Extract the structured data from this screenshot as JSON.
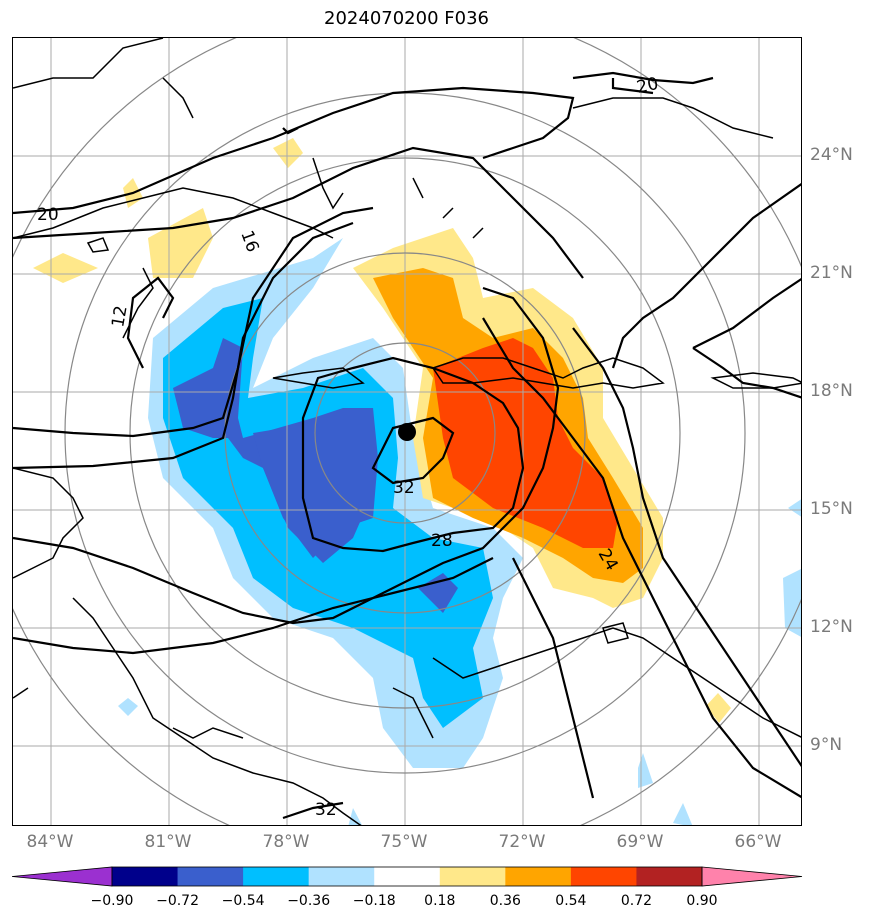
{
  "title": "2024070200 F036",
  "lon_labels": [
    "84°W",
    "81°W",
    "78°W",
    "75°W",
    "72°W",
    "69°W",
    "66°W"
  ],
  "lat_labels": [
    "24°N",
    "21°N",
    "18°N",
    "15°N",
    "12°N",
    "9°N"
  ],
  "contour_labels": [
    "20",
    "20",
    "16",
    "12",
    "32",
    "28",
    "24",
    "32"
  ],
  "colorbar": {
    "ticks": [
      "−0.90",
      "−0.72",
      "−0.54",
      "−0.36",
      "−0.18",
      "0.18",
      "0.36",
      "0.54",
      "0.72",
      "0.90"
    ],
    "colors": [
      "#9b30d0",
      "#00008b",
      "#3a5fcd",
      "#00bfff",
      "#b0e2ff",
      "#ffffff",
      "#ffe88a",
      "#ffa500",
      "#ff4500",
      "#b22222",
      "#ff82ab"
    ]
  },
  "storm_center": {
    "lon": "75°W",
    "lat": "17°N"
  }
}
